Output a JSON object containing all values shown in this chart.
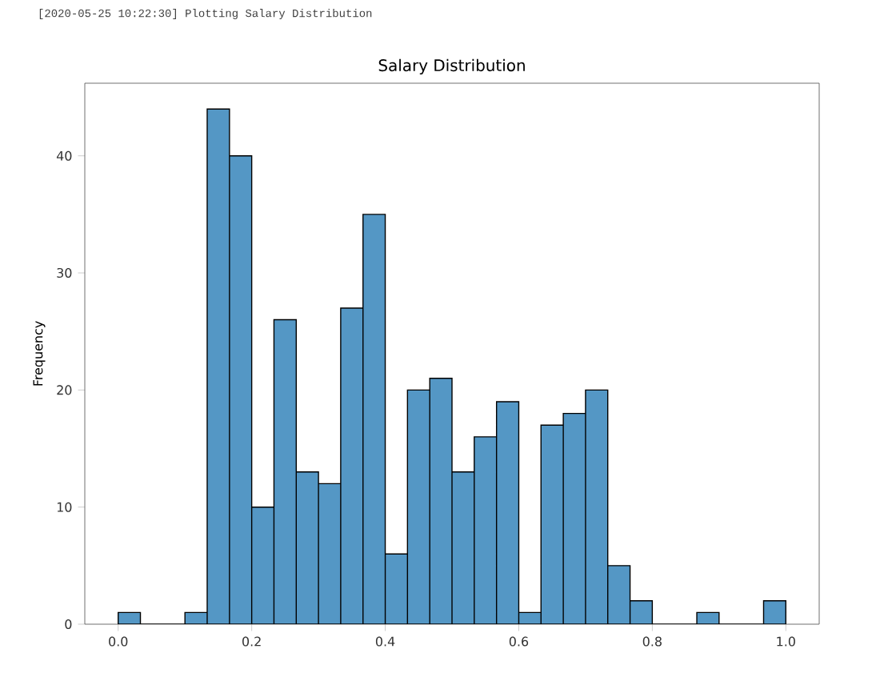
{
  "chart_data": {
    "type": "histogram",
    "title": "Salary Distribution",
    "ylabel": "Frequency",
    "annotations": [
      "[2020-05-25 10:22:30] Plotting Salary Distribution"
    ],
    "bins": [
      0,
      0.0333,
      0.0667,
      0.1,
      0.1333,
      0.1667,
      0.2,
      0.2333,
      0.2667,
      0.3,
      0.3333,
      0.3667,
      0.4,
      0.4333,
      0.4667,
      0.5,
      0.5333,
      0.5667,
      0.6,
      0.6333,
      0.6667,
      0.7,
      0.7333,
      0.7667,
      0.8,
      0.8333,
      0.8667,
      0.9,
      0.9333,
      0.9667,
      1.0
    ],
    "values": [
      1,
      0,
      0,
      1,
      44,
      40,
      10,
      26,
      13,
      12,
      27,
      35,
      6,
      20,
      21,
      13,
      16,
      19,
      1,
      17,
      18,
      20,
      5,
      2,
      0,
      0,
      1,
      0,
      0,
      2
    ],
    "color": "#5497c5",
    "xlim": [
      -0.05,
      1.05
    ],
    "ylim": [
      0,
      46.2
    ],
    "xticks": [
      {
        "value": 0,
        "label": "0.0"
      },
      0.2,
      0.4,
      0.6,
      0.8,
      {
        "value": 1,
        "label": "1.0"
      }
    ],
    "yticks": [
      0,
      10,
      20,
      30,
      40
    ],
    "grid": false
  }
}
